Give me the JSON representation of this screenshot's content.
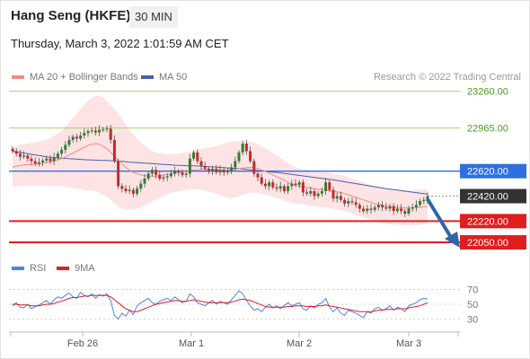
{
  "header": {
    "title": "Hang Seng (HKFE)",
    "timeframe": "30 MIN"
  },
  "datetime": "Thursday, March 3, 2022 1:01:59 AM CET",
  "legend": {
    "ma20": "MA 20 + Bollinger Bands",
    "ma50": "MA 50",
    "copyright": "Research © 2022 Trading Central"
  },
  "rsi_legend": {
    "rsi": "RSI",
    "ma9": "9MA"
  },
  "colors": {
    "ma20": "#f28b82",
    "ma50": "#4a5fa8",
    "band": "#fde3e3",
    "up": "#2e7d32",
    "down": "#c62828",
    "resist_green": "#a5d26f",
    "pivot_blue": "#2f6fe0",
    "support_red": "#e01e1e",
    "last": "#333333",
    "rsi": "#4a86e8",
    "rsi_ma": "#e01e1e",
    "arrow": "#2f64a8"
  },
  "chart_data": [
    {
      "type": "candlestick",
      "title": "Hang Seng (HKFE)",
      "x_ticks": [
        "Feb 26",
        "Mar 1",
        "Mar 2",
        "Mar 3"
      ],
      "levels": [
        {
          "value": 23260.0,
          "label": "23260.00",
          "kind": "resistance"
        },
        {
          "value": 22965.0,
          "label": "22965.00",
          "kind": "resistance"
        },
        {
          "value": 22620.0,
          "label": "22620.00",
          "kind": "pivot"
        },
        {
          "value": 22420.0,
          "label": "22420.00",
          "kind": "last"
        },
        {
          "value": 22220.0,
          "label": "22220.00",
          "kind": "support"
        },
        {
          "value": 22050.0,
          "label": "22050.00",
          "kind": "support"
        }
      ],
      "closes": [
        22780,
        22760,
        22735,
        22745,
        22720,
        22700,
        22680,
        22690,
        22705,
        22720,
        22700,
        22730,
        22760,
        22790,
        22830,
        22870,
        22895,
        22880,
        22905,
        22925,
        22940,
        22945,
        22930,
        22950,
        22955,
        22960,
        22870,
        22700,
        22500,
        22480,
        22460,
        22470,
        22440,
        22480,
        22520,
        22560,
        22600,
        22630,
        22590,
        22560,
        22570,
        22580,
        22600,
        22620,
        22610,
        22590,
        22600,
        22720,
        22770,
        22700,
        22660,
        22640,
        22620,
        22640,
        22610,
        22630,
        22610,
        22620,
        22650,
        22700,
        22770,
        22840,
        22780,
        22700,
        22600,
        22570,
        22520,
        22500,
        22530,
        22490,
        22480,
        22500,
        22460,
        22500,
        22520,
        22510,
        22530,
        22450,
        22440,
        22460,
        22420,
        22440,
        22460,
        22530,
        22470,
        22400,
        22420,
        22390,
        22360,
        22380,
        22370,
        22350,
        22320,
        22300,
        22320,
        22310,
        22330,
        22350,
        22330,
        22320,
        22340,
        22300,
        22320,
        22300,
        22280,
        22320,
        22330,
        22350,
        22380,
        22390,
        22420
      ],
      "ma20": [
        22650,
        22660,
        22665,
        22670,
        22672,
        22674,
        22676,
        22678,
        22682,
        22688,
        22695,
        22702,
        22710,
        22720,
        22735,
        22750,
        22765,
        22780,
        22795,
        22810,
        22825,
        22835,
        22840,
        22835,
        22820,
        22800,
        22770,
        22740,
        22710,
        22680,
        22650,
        22630,
        22610,
        22600,
        22590,
        22585,
        22580,
        22580,
        22580,
        22585,
        22590,
        22595,
        22600,
        22605,
        22610,
        22615,
        22620,
        22625,
        22630,
        22632,
        22634,
        22634,
        22633,
        22632,
        22631,
        22630,
        22628,
        22627,
        22630,
        22635,
        22640,
        22645,
        22648,
        22650,
        22648,
        22640,
        22630,
        22618,
        22605,
        22590,
        22575,
        22560,
        22545,
        22530,
        22515,
        22505,
        22500,
        22495,
        22490,
        22485,
        22480,
        22475,
        22472,
        22470,
        22465,
        22460,
        22455,
        22448,
        22440,
        22430,
        22420,
        22410,
        22400,
        22390,
        22380,
        22370,
        22360,
        22352,
        22345,
        22340,
        22335,
        22332,
        22330,
        22328,
        22326,
        22325,
        22326,
        22328,
        22330,
        22335,
        22340
      ],
      "ma50": [
        22780,
        22775,
        22770,
        22765,
        22760,
        22755,
        22750,
        22745,
        22740,
        22735,
        22730,
        22728,
        22726,
        22724,
        22722,
        22720,
        22718,
        22716,
        22714,
        22712,
        22710,
        22709,
        22708,
        22707,
        22706,
        22705,
        22704,
        22702,
        22700,
        22698,
        22695,
        22692,
        22690,
        22688,
        22686,
        22684,
        22682,
        22680,
        22678,
        22676,
        22674,
        22672,
        22670,
        22668,
        22666,
        22665,
        22664,
        22663,
        22662,
        22661,
        22660,
        22658,
        22656,
        22654,
        22652,
        22650,
        22648,
        22646,
        22644,
        22642,
        22640,
        22637,
        22634,
        22631,
        22628,
        22625,
        22622,
        22619,
        22616,
        22613,
        22610,
        22606,
        22602,
        22598,
        22594,
        22590,
        22586,
        22582,
        22578,
        22574,
        22570,
        22566,
        22562,
        22558,
        22554,
        22550,
        22545,
        22540,
        22535,
        22530,
        22525,
        22520,
        22515,
        22510,
        22505,
        22500,
        22495,
        22490,
        22485,
        22480,
        22476,
        22472,
        22468,
        22464,
        22460,
        22456,
        22452,
        22448,
        22444,
        22440,
        22436
      ],
      "bb_width": [
        160,
        160,
        165,
        165,
        170,
        170,
        175,
        175,
        180,
        185,
        190,
        200,
        210,
        220,
        240,
        260,
        280,
        300,
        320,
        340,
        360,
        370,
        380,
        390,
        390,
        380,
        380,
        380,
        370,
        360,
        340,
        320,
        300,
        280,
        260,
        240,
        220,
        200,
        190,
        180,
        170,
        160,
        155,
        150,
        150,
        150,
        150,
        150,
        155,
        160,
        165,
        170,
        175,
        180,
        190,
        200,
        210,
        220,
        225,
        225,
        220,
        215,
        210,
        205,
        200,
        195,
        190,
        185,
        180,
        175,
        170,
        165,
        160,
        155,
        150,
        145,
        140,
        140,
        140,
        140,
        140,
        140,
        140,
        140,
        140,
        140,
        140,
        140,
        140,
        140,
        140,
        140,
        140,
        140,
        140,
        140,
        140,
        140,
        140,
        140,
        140,
        140,
        140,
        140,
        140,
        140,
        140,
        140,
        140,
        140,
        140
      ]
    },
    {
      "type": "line",
      "title": "RSI",
      "y_ticks": [
        70,
        50,
        30
      ],
      "series": [
        {
          "name": "RSI",
          "values": [
            48,
            52,
            46,
            45,
            50,
            44,
            47,
            49,
            52,
            55,
            50,
            56,
            60,
            58,
            62,
            65,
            60,
            58,
            66,
            62,
            60,
            64,
            58,
            63,
            61,
            64,
            55,
            35,
            30,
            38,
            34,
            42,
            36,
            48,
            52,
            55,
            58,
            52,
            50,
            54,
            56,
            58,
            55,
            60,
            56,
            52,
            54,
            64,
            60,
            52,
            50,
            48,
            52,
            55,
            50,
            54,
            52,
            50,
            56,
            62,
            68,
            64,
            55,
            48,
            42,
            44,
            40,
            46,
            50,
            45,
            48,
            44,
            48,
            52,
            48,
            50,
            52,
            44,
            42,
            48,
            45,
            50,
            52,
            58,
            46,
            40,
            45,
            38,
            35,
            42,
            40,
            38,
            35,
            32,
            40,
            38,
            44,
            46,
            42,
            44,
            48,
            42,
            46,
            44,
            40,
            48,
            50,
            52,
            56,
            58,
            57
          ]
        },
        {
          "name": "9MA",
          "values": [
            50,
            50,
            49,
            49,
            49,
            48,
            48,
            48,
            49,
            50,
            50,
            51,
            53,
            54,
            56,
            58,
            59,
            59,
            60,
            61,
            61,
            62,
            62,
            62,
            62,
            62,
            60,
            56,
            52,
            48,
            44,
            42,
            40,
            40,
            42,
            44,
            46,
            48,
            50,
            51,
            52,
            53,
            54,
            55,
            55,
            54,
            54,
            55,
            56,
            55,
            54,
            53,
            52,
            52,
            52,
            52,
            52,
            52,
            53,
            54,
            56,
            57,
            56,
            55,
            53,
            51,
            49,
            47,
            46,
            46,
            46,
            46,
            46,
            47,
            47,
            48,
            48,
            48,
            47,
            47,
            47,
            48,
            48,
            49,
            48,
            47,
            46,
            45,
            44,
            43,
            42,
            41,
            40,
            40,
            40,
            40,
            41,
            42,
            42,
            43,
            43,
            43,
            44,
            44,
            44,
            45,
            46,
            47,
            48,
            50,
            52
          ]
        }
      ]
    }
  ]
}
